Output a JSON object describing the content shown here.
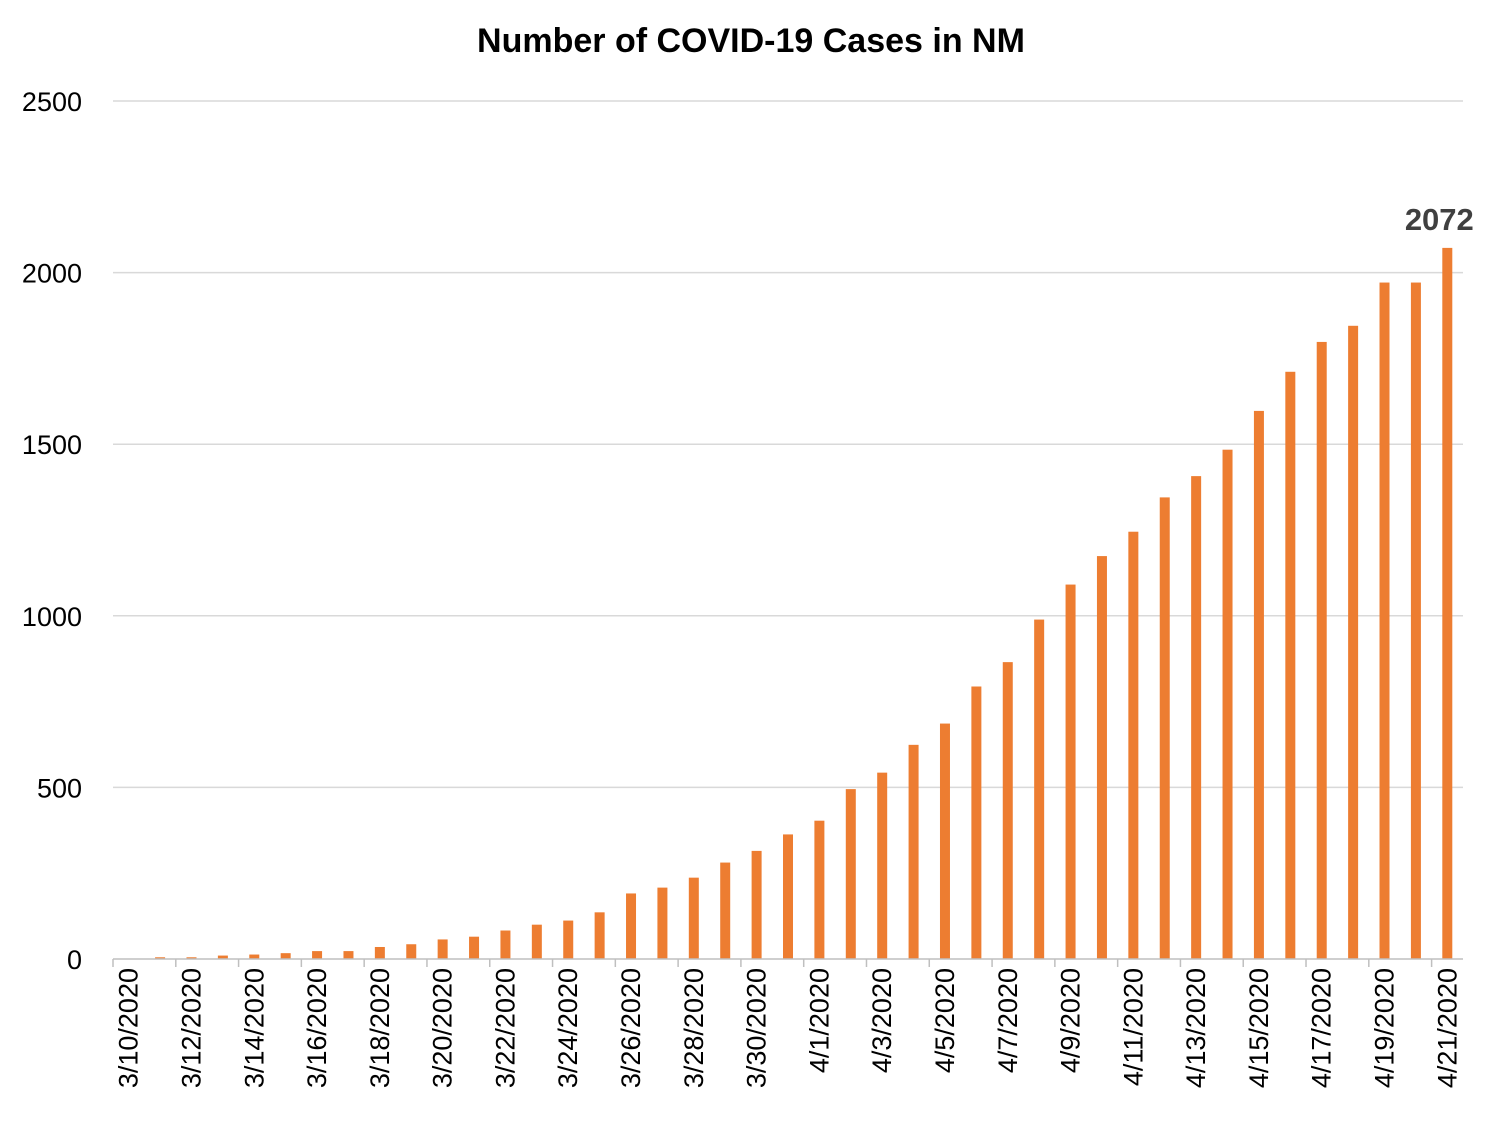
{
  "chart_data": {
    "type": "bar",
    "title": "Number of COVID-19 Cases in NM",
    "xlabel": "",
    "ylabel": "",
    "ylim": [
      0,
      2500
    ],
    "yticks": [
      0,
      500,
      1000,
      1500,
      2000,
      2500
    ],
    "grid": true,
    "legend": "none",
    "bar_color": "#ED7D31",
    "categories": [
      "3/10/2020",
      "3/11/2020",
      "3/12/2020",
      "3/13/2020",
      "3/14/2020",
      "3/15/2020",
      "3/16/2020",
      "3/17/2020",
      "3/18/2020",
      "3/19/2020",
      "3/20/2020",
      "3/21/2020",
      "3/22/2020",
      "3/23/2020",
      "3/24/2020",
      "3/25/2020",
      "3/26/2020",
      "3/27/2020",
      "3/28/2020",
      "3/29/2020",
      "3/30/2020",
      "3/31/2020",
      "4/1/2020",
      "4/2/2020",
      "4/3/2020",
      "4/4/2020",
      "4/5/2020",
      "4/6/2020",
      "4/7/2020",
      "4/8/2020",
      "4/9/2020",
      "4/10/2020",
      "4/11/2020",
      "4/12/2020",
      "4/13/2020",
      "4/14/2020",
      "4/15/2020",
      "4/16/2020",
      "4/17/2020",
      "4/18/2020",
      "4/19/2020",
      "4/20/2020",
      "4/21/2020"
    ],
    "tick_labels_shown": [
      "3/10/2020",
      "3/12/2020",
      "3/14/2020",
      "3/16/2020",
      "3/18/2020",
      "3/20/2020",
      "3/22/2020",
      "3/24/2020",
      "3/26/2020",
      "3/28/2020",
      "3/30/2020",
      "4/1/2020",
      "4/3/2020",
      "4/5/2020",
      "4/7/2020",
      "4/9/2020",
      "4/11/2020",
      "4/13/2020",
      "4/15/2020",
      "4/17/2020",
      "4/19/2020",
      "4/21/2020"
    ],
    "values": [
      0,
      5,
      5,
      10,
      13,
      17,
      23,
      23,
      35,
      43,
      57,
      65,
      83,
      100,
      112,
      136,
      191,
      208,
      237,
      281,
      315,
      363,
      403,
      495,
      543,
      624,
      686,
      794,
      865,
      989,
      1091,
      1174,
      1245,
      1345,
      1407,
      1484,
      1597,
      1711,
      1798,
      1845,
      1971,
      1971,
      2072
    ],
    "annotations": [
      {
        "category": "4/21/2020",
        "text": "2072"
      }
    ]
  }
}
